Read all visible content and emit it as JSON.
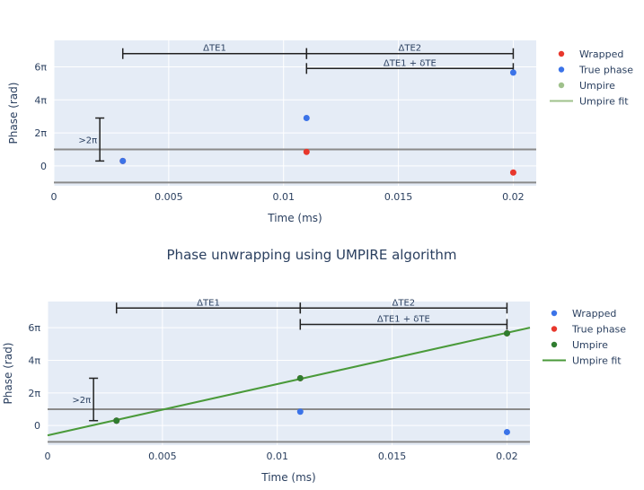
{
  "middle_title": "Phase unwrapping using UMPIRE algorithm",
  "chart_data": [
    {
      "type": "scatter",
      "xlabel": "Time (ms)",
      "ylabel": "Phase (rad)",
      "xlim": [
        0,
        0.021
      ],
      "ylim": [
        -1.2,
        7.6
      ],
      "x_ticks": [
        {
          "value": 0,
          "label": "0"
        },
        {
          "value": 0.005,
          "label": "0.005"
        },
        {
          "value": 0.01,
          "label": "0.01"
        },
        {
          "value": 0.015,
          "label": "0.015"
        },
        {
          "value": 0.02,
          "label": "0.02"
        }
      ],
      "y_ticks": [
        {
          "value": 0,
          "label": "0"
        },
        {
          "value": 2,
          "label": "2π"
        },
        {
          "value": 4,
          "label": "4π"
        },
        {
          "value": 6,
          "label": "6π"
        }
      ],
      "hlines": [
        1,
        -1
      ],
      "series": [
        {
          "name": "Wrapped",
          "color": "#e8372c",
          "mode": "markers",
          "points": [
            [
              0.003,
              0.3
            ],
            [
              0.011,
              0.85
            ],
            [
              0.02,
              -0.4
            ]
          ]
        },
        {
          "name": "True phase",
          "color": "#3b73e8",
          "mode": "markers",
          "points": [
            [
              0.003,
              0.3
            ],
            [
              0.011,
              2.9
            ],
            [
              0.02,
              5.65
            ]
          ]
        },
        {
          "name": "Umpire",
          "color": "#9fc18b",
          "mode": "markers",
          "points": []
        },
        {
          "name": "Umpire fit",
          "color": "#9fc18b",
          "mode": "line",
          "points": []
        }
      ],
      "annotations": [
        {
          "text": "ΔTE1",
          "x0": 0.003,
          "x1": 0.011,
          "y": 6.8
        },
        {
          "text": "ΔTE2",
          "x0": 0.011,
          "x1": 0.02,
          "y": 6.8
        },
        {
          "text": "ΔTE1 + δTE",
          "x0": 0.011,
          "x1": 0.02,
          "y": 5.9
        }
      ],
      "vbar": {
        "text": ">2π",
        "x": 0.002,
        "y0": 0.3,
        "y1": 2.9
      }
    },
    {
      "type": "scatter",
      "xlabel": "Time (ms)",
      "ylabel": "Phase (rad)",
      "xlim": [
        0,
        0.021
      ],
      "ylim": [
        -1.2,
        7.6
      ],
      "x_ticks": [
        {
          "value": 0,
          "label": "0"
        },
        {
          "value": 0.005,
          "label": "0.005"
        },
        {
          "value": 0.01,
          "label": "0.01"
        },
        {
          "value": 0.015,
          "label": "0.015"
        },
        {
          "value": 0.02,
          "label": "0.02"
        }
      ],
      "y_ticks": [
        {
          "value": 0,
          "label": "0"
        },
        {
          "value": 2,
          "label": "2π"
        },
        {
          "value": 4,
          "label": "4π"
        },
        {
          "value": 6,
          "label": "6π"
        }
      ],
      "hlines": [
        1,
        -1
      ],
      "series": [
        {
          "name": "Wrapped",
          "color": "#3b73e8",
          "mode": "markers",
          "points": [
            [
              0.003,
              0.3
            ],
            [
              0.011,
              0.85
            ],
            [
              0.02,
              -0.4
            ]
          ]
        },
        {
          "name": "True phase",
          "color": "#e8372c",
          "mode": "markers",
          "points": [
            [
              0.003,
              0.3
            ],
            [
              0.011,
              2.9
            ],
            [
              0.02,
              5.65
            ]
          ]
        },
        {
          "name": "Umpire",
          "color": "#2f7d2f",
          "mode": "markers",
          "points": [
            [
              0.003,
              0.3
            ],
            [
              0.011,
              2.9
            ],
            [
              0.02,
              5.65
            ]
          ]
        },
        {
          "name": "Umpire fit",
          "color": "#4a9a3a",
          "mode": "line",
          "points": [
            [
              0,
              -0.6
            ],
            [
              0.021,
              6.0
            ]
          ]
        }
      ],
      "annotations": [
        {
          "text": "ΔTE1",
          "x0": 0.003,
          "x1": 0.011,
          "y": 7.2
        },
        {
          "text": "ΔTE2",
          "x0": 0.011,
          "x1": 0.02,
          "y": 7.2
        },
        {
          "text": "ΔTE1 + δTE",
          "x0": 0.011,
          "x1": 0.02,
          "y": 6.2
        }
      ],
      "vbar": {
        "text": ">2π",
        "x": 0.002,
        "y0": 0.3,
        "y1": 2.9
      }
    }
  ]
}
